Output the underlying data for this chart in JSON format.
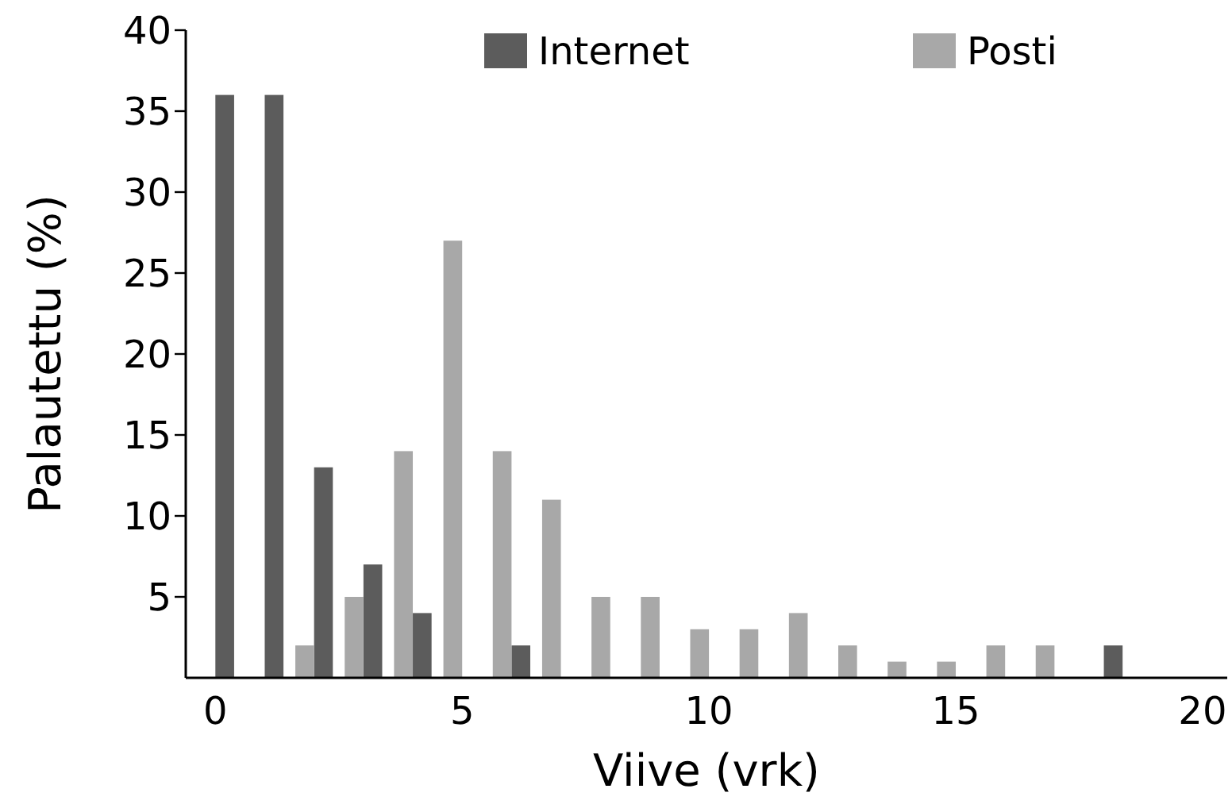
{
  "chart_data": {
    "type": "bar",
    "xlabel": "Viive (vrk)",
    "ylabel": "Palautettu (%)",
    "xlim": [
      -0.6,
      20.5
    ],
    "xticks": [
      0,
      5,
      10,
      15,
      20
    ],
    "ylim": [
      0,
      40
    ],
    "yticks": [
      5,
      10,
      15,
      20,
      25,
      30,
      35,
      40
    ],
    "grid": false,
    "legend": "top",
    "series": [
      {
        "name": "Internet",
        "color": "#5c5c5c",
        "x": [
          0,
          1,
          2,
          3,
          4,
          6,
          18
        ],
        "values": [
          36,
          36,
          13,
          7,
          4,
          2,
          2
        ]
      },
      {
        "name": "Posti",
        "color": "#a8a8a8",
        "x": [
          2,
          3,
          4,
          5,
          6,
          7,
          8,
          9,
          10,
          11,
          12,
          13,
          14,
          15,
          16,
          17
        ],
        "values": [
          2,
          5,
          14,
          27,
          14,
          11,
          5,
          5,
          3,
          3,
          4,
          2,
          1,
          1,
          2,
          2
        ]
      }
    ]
  }
}
